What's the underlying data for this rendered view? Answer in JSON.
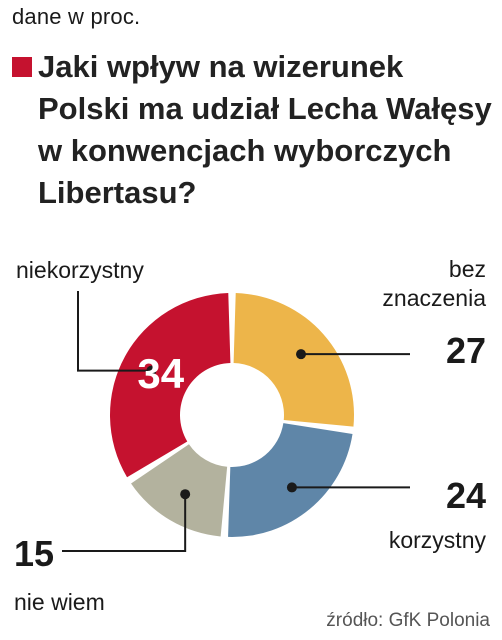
{
  "header": {
    "unit_note": "dane w proc.",
    "question": "Jaki wpływ na wizerunek Polski ma udział Lecha Wałęsy w konwencjach wyborczych Libertasu?"
  },
  "footer": {
    "source": "źródło: GfK Polonia"
  },
  "colors": {
    "niekorzystny": "#c5122f",
    "bez_znaczenia": "#edb54a",
    "korzystny": "#5f86a8",
    "nie_wiem": "#b3b29e",
    "marker": "#c5122f"
  },
  "chart_data": {
    "type": "pie",
    "variant": "donut",
    "unit": "%",
    "slices": [
      {
        "label": "bez znaczenia",
        "label_lines": [
          "bez",
          "znaczenia"
        ],
        "value": 27,
        "value_text": "27",
        "color": "#edb54a"
      },
      {
        "label": "korzystny",
        "label_lines": [
          "korzystny"
        ],
        "value": 24,
        "value_text": "24",
        "color": "#5f86a8"
      },
      {
        "label": "nie wiem",
        "label_lines": [
          "nie wiem"
        ],
        "value": 15,
        "value_text": "15",
        "color": "#b3b29e"
      },
      {
        "label": "niekorzystny",
        "label_lines": [
          "niekorzystny"
        ],
        "value": 34,
        "value_text": "34",
        "color": "#c5122f"
      }
    ]
  }
}
